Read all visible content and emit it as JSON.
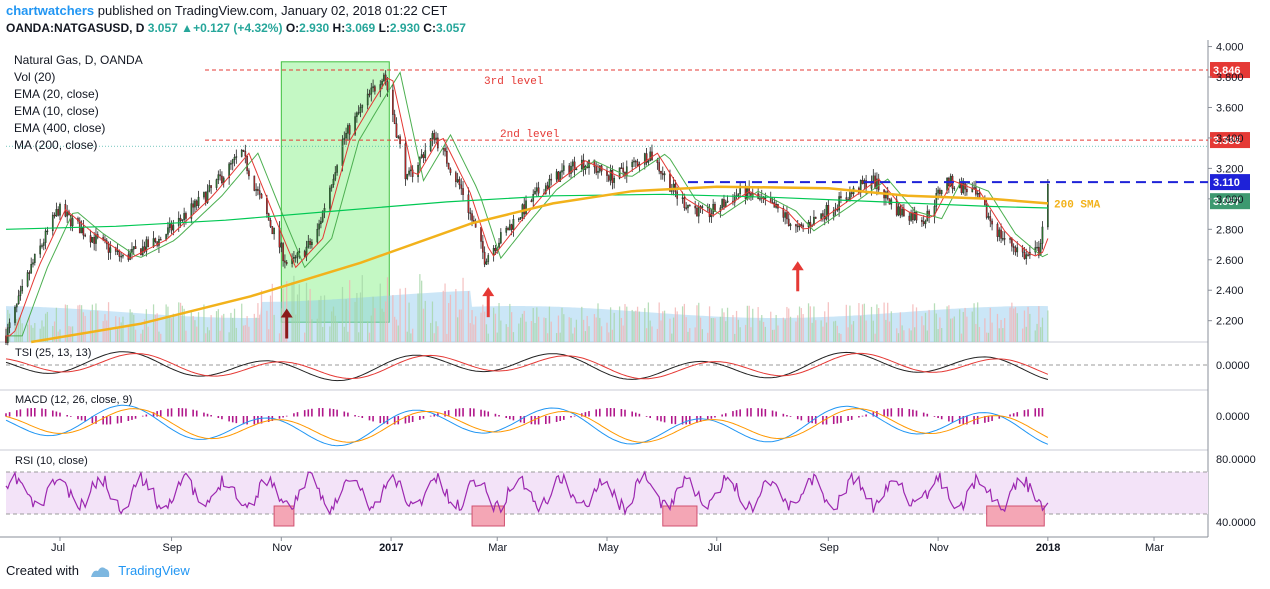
{
  "header": {
    "author": "chartwatchers",
    "published_text": "published on TradingView.com, January 02, 2018 01:22 CET",
    "symbol": "OANDA:NATGASUSD, D",
    "last": "3.057",
    "change_arrow": "▲",
    "change": "+0.127 (+4.32%)",
    "o_label": "O:",
    "o_val": "2.930",
    "h_label": "H:",
    "h_val": "3.069",
    "l_label": "L:",
    "l_val": "2.930",
    "c_label": "C:",
    "c_val": "3.057"
  },
  "legend": {
    "title": "Natural Gas, D, OANDA",
    "items": [
      "Vol (20)",
      "EMA (20, close)",
      "EMA (10, close)",
      "EMA (400, close)",
      "MA (200, close)"
    ]
  },
  "footer": {
    "created_with": "Created with",
    "brand": "TradingView"
  },
  "colors": {
    "up": "#26a69a",
    "down": "#ef5350",
    "candle_body_up": "#2e7d32",
    "candle_body_down": "#c62828",
    "ema20": "#4caf50",
    "ema10": "#e53935",
    "ema400": "#00c853",
    "sma200": "#f2b21b",
    "level": "#e53935",
    "resistance": "#1e22d8",
    "highlight": "#7cf07c",
    "rsi_band": "#f3e3f8",
    "rsi": "#9c27b0",
    "oversold": "#f4a6b5"
  },
  "chart_data": {
    "type": "candlestick",
    "x_range": [
      "2016-06-01",
      "2018-03-31"
    ],
    "x_tick_labels": [
      "Jul",
      "Sep",
      "Nov",
      "2017",
      "Mar",
      "May",
      "Jul",
      "Sep",
      "Nov",
      "2018",
      "Mar"
    ],
    "y_ticks": [
      "4.000",
      "3.800",
      "3.600",
      "3.400",
      "3.200",
      "3.000",
      "2.800",
      "2.600",
      "2.400",
      "2.200"
    ],
    "ylim": [
      2.06,
      4.03
    ],
    "price_path": [
      [
        "2016-06-01",
        2.1
      ],
      [
        "2016-06-15",
        2.55
      ],
      [
        "2016-06-30",
        2.93
      ],
      [
        "2016-07-15",
        2.78
      ],
      [
        "2016-08-05",
        2.61
      ],
      [
        "2016-08-25",
        2.73
      ],
      [
        "2016-09-20",
        3.02
      ],
      [
        "2016-10-10",
        3.3
      ],
      [
        "2016-10-25",
        2.86
      ],
      [
        "2016-11-05",
        2.55
      ],
      [
        "2016-11-20",
        2.74
      ],
      [
        "2016-12-05",
        3.38
      ],
      [
        "2016-12-16",
        3.6
      ],
      [
        "2016-12-28",
        3.83
      ],
      [
        "2017-01-10",
        3.12
      ],
      [
        "2017-01-25",
        3.42
      ],
      [
        "2017-02-10",
        3.04
      ],
      [
        "2017-02-22",
        2.61
      ],
      [
        "2017-03-10",
        2.85
      ],
      [
        "2017-03-25",
        3.06
      ],
      [
        "2017-04-15",
        3.25
      ],
      [
        "2017-05-05",
        3.14
      ],
      [
        "2017-05-25",
        3.3
      ],
      [
        "2017-06-10",
        3.0
      ],
      [
        "2017-06-25",
        2.89
      ],
      [
        "2017-07-15",
        3.05
      ],
      [
        "2017-08-05",
        2.92
      ],
      [
        "2017-08-15",
        2.79
      ],
      [
        "2017-09-05",
        2.96
      ],
      [
        "2017-09-25",
        3.13
      ],
      [
        "2017-10-10",
        2.92
      ],
      [
        "2017-10-25",
        2.87
      ],
      [
        "2017-11-05",
        3.12
      ],
      [
        "2017-11-20",
        3.05
      ],
      [
        "2017-12-05",
        2.77
      ],
      [
        "2017-12-20",
        2.62
      ],
      [
        "2017-12-27",
        2.66
      ],
      [
        "2018-01-01",
        3.06
      ]
    ],
    "ema400_path": [
      [
        "2016-06-01",
        2.8
      ],
      [
        "2016-08-01",
        2.82
      ],
      [
        "2016-10-01",
        2.86
      ],
      [
        "2016-12-01",
        2.92
      ],
      [
        "2017-02-01",
        2.98
      ],
      [
        "2017-04-01",
        3.02
      ],
      [
        "2017-06-01",
        3.03
      ],
      [
        "2017-08-01",
        3.01
      ],
      [
        "2017-10-01",
        2.98
      ],
      [
        "2017-12-01",
        2.95
      ],
      [
        "2018-01-01",
        2.94
      ]
    ],
    "sma200_path": [
      [
        "2016-06-15",
        2.06
      ],
      [
        "2016-08-15",
        2.18
      ],
      [
        "2016-10-15",
        2.36
      ],
      [
        "2016-12-15",
        2.58
      ],
      [
        "2017-02-15",
        2.84
      ],
      [
        "2017-04-01",
        2.97
      ],
      [
        "2017-05-15",
        3.05
      ],
      [
        "2017-07-01",
        3.08
      ],
      [
        "2017-09-01",
        3.07
      ],
      [
        "2017-10-15",
        3.02
      ],
      [
        "2017-12-01",
        3.0
      ],
      [
        "2018-01-01",
        2.97
      ]
    ],
    "levels": [
      {
        "label": "3rd level",
        "value": 3.846,
        "tag": "3.846"
      },
      {
        "label": "2nd level",
        "value": 3.386,
        "tag": "3.386"
      }
    ],
    "resistance": {
      "value": 3.11,
      "tag": "3.110",
      "from": "2017-06-15"
    },
    "last_tag": "3.057",
    "sma_label": "200 SMA",
    "highlight_zone": {
      "from": "2016-11-01",
      "to": "2016-12-31",
      "ylow": 2.19,
      "yhigh": 3.9
    },
    "arrows": [
      {
        "date": "2016-11-04",
        "value": 2.28,
        "color": "#8b1a1a"
      },
      {
        "date": "2017-02-24",
        "value": 2.42,
        "color": "#e53935"
      },
      {
        "date": "2017-08-15",
        "value": 2.59,
        "color": "#e53935"
      }
    ],
    "volume_label": "Vol (20)",
    "indicators": [
      {
        "name": "TSI (25, 13, 13)",
        "zero_tick": "0.0000"
      },
      {
        "name": "MACD (12, 26, close, 9)",
        "zero_tick": "0.0000"
      },
      {
        "name": "RSI (10, close)",
        "ticks": [
          "80.0000",
          "40.0000"
        ],
        "band": [
          30,
          70
        ]
      }
    ],
    "oversold_boxes": [
      {
        "from": "2016-10-28",
        "to": "2016-11-08"
      },
      {
        "from": "2017-02-15",
        "to": "2017-03-05"
      },
      {
        "from": "2017-06-01",
        "to": "2017-06-20"
      },
      {
        "from": "2017-11-28",
        "to": "2017-12-30"
      }
    ]
  }
}
